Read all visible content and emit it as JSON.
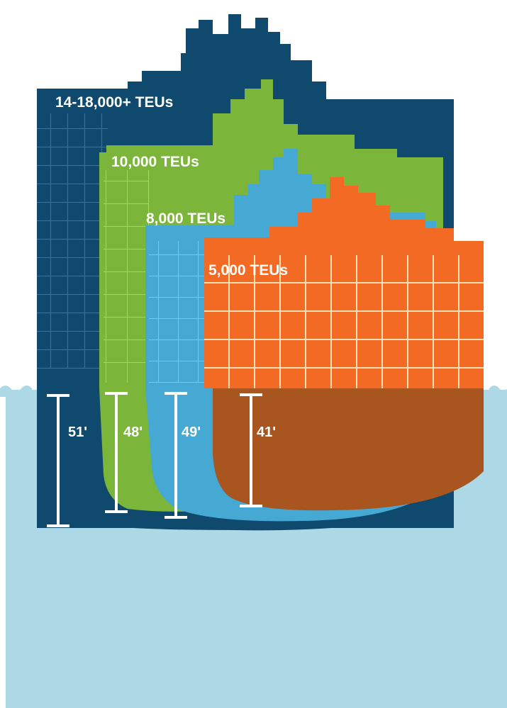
{
  "colors": {
    "water": "#add9e6",
    "water_surface": "#9dd0e0",
    "ship_large": "#0f4a6e",
    "ship_10000": "#7bb63a",
    "ship_8000": "#45a9d3",
    "ship_5000": "#f26a24",
    "hull_5000": "#a85520",
    "grid_line": "#f5deb0",
    "marker": "#ffffff"
  },
  "ships": [
    {
      "label": "14-18,000+ TEUs",
      "draft": "51'"
    },
    {
      "label": "10,000 TEUs",
      "draft": "48'"
    },
    {
      "label": "8,000 TEUs",
      "draft": "49'"
    },
    {
      "label": "5,000 TEUs",
      "draft": "41'"
    }
  ]
}
